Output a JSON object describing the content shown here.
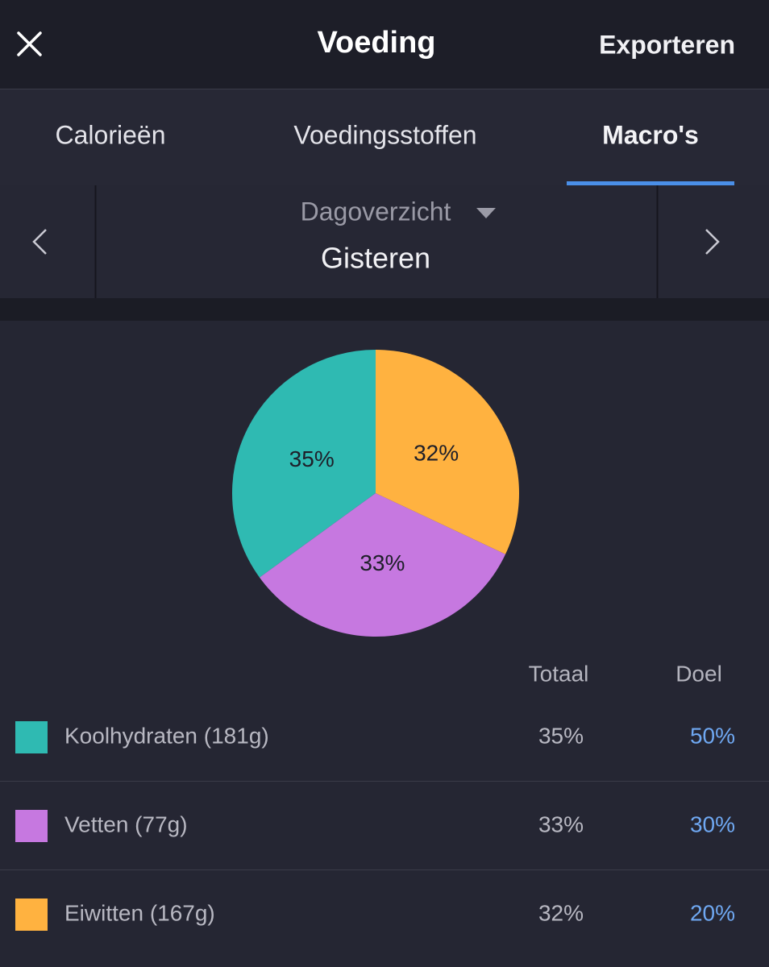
{
  "header": {
    "title": "Voeding",
    "action": "Exporteren"
  },
  "tabs": [
    "Calorieën",
    "Voedingsstoffen",
    "Macro's"
  ],
  "date_nav": {
    "mode": "Dagoverzicht",
    "date": "Gisteren"
  },
  "chart_data": {
    "type": "pie",
    "categories": [
      "Koolhydraten (181g)",
      "Vetten (77g)",
      "Eiwitten (167g)"
    ],
    "values": [
      35,
      33,
      32
    ],
    "value_labels": [
      "35%",
      "33%",
      "32%"
    ],
    "colors": [
      "#2fbab2",
      "#c678e0",
      "#ffb240"
    ]
  },
  "table": {
    "columns": [
      "Totaal",
      "Doel"
    ],
    "goals": [
      "50%",
      "30%",
      "20%"
    ]
  }
}
